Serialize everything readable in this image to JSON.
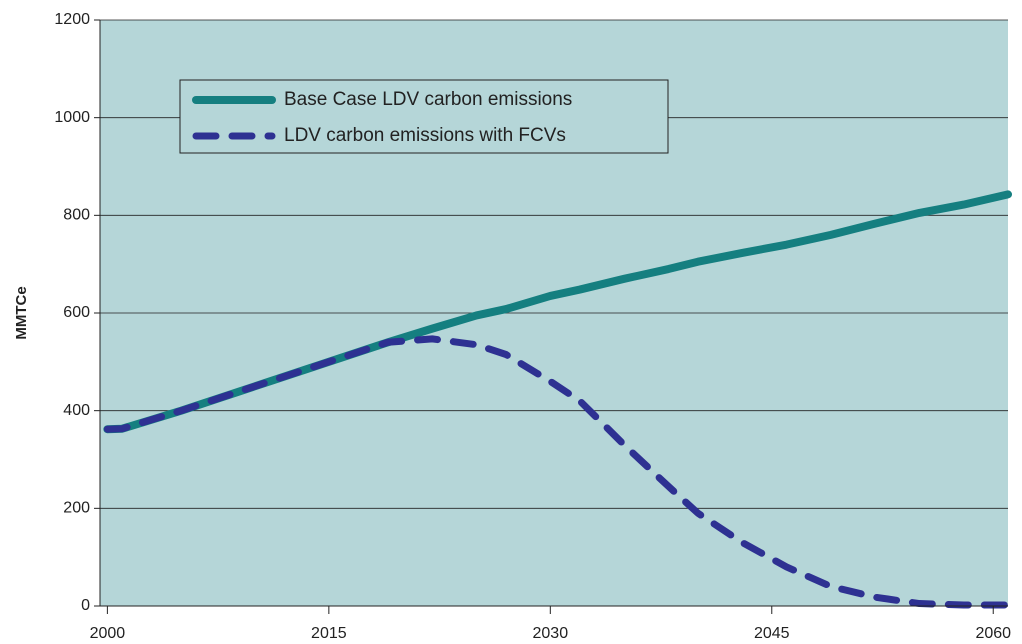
{
  "chart_data": {
    "type": "line",
    "y_label": "MMTCe",
    "x": [
      2000,
      2001,
      2005,
      2010,
      2015,
      2019,
      2022,
      2025,
      2027,
      2030,
      2032,
      2035,
      2038,
      2040,
      2043,
      2046,
      2049,
      2052,
      2055,
      2058,
      2061
    ],
    "series": [
      {
        "name": "Base Case LDV carbon emissions",
        "color": "#157f80",
        "dash": false,
        "values": [
          362,
          363,
          400,
          450,
          500,
          540,
          568,
          595,
          608,
          635,
          648,
          670,
          690,
          705,
          723,
          740,
          760,
          783,
          805,
          822,
          843
        ]
      },
      {
        "name": "LDV carbon emissions with FCVs",
        "color": "#2e3192",
        "dash": true,
        "values": [
          362,
          363,
          400,
          450,
          500,
          540,
          547,
          535,
          515,
          460,
          420,
          330,
          245,
          190,
          130,
          80,
          40,
          18,
          5,
          2,
          2
        ]
      }
    ],
    "xlim": [
      1999.5,
      2061
    ],
    "ylim": [
      0,
      1200
    ],
    "xticks": [
      2000,
      2015,
      2030,
      2045,
      2060
    ],
    "yticks": [
      0,
      200,
      400,
      600,
      800,
      1000,
      1200
    ],
    "grid": true,
    "legend": "top-left"
  }
}
